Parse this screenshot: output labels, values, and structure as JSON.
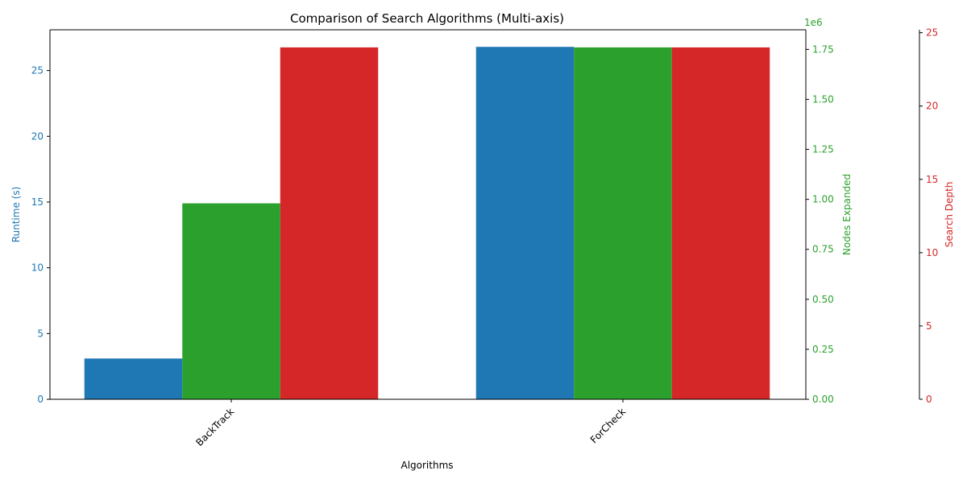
{
  "chart_data": {
    "type": "bar",
    "title": "Comparison of Search Algorithms (Multi-axis)",
    "xlabel": "Algorithms",
    "categories": [
      "BackTrack",
      "ForCheck"
    ],
    "series": [
      {
        "name": "Runtime",
        "axis_label": "Runtime (s)",
        "color": "#1f77b4",
        "values": [
          3.1,
          26.8
        ],
        "ylim": [
          0,
          28.1
        ],
        "ticks": [
          0,
          5,
          10,
          15,
          20,
          25
        ],
        "tick_labels": [
          "0",
          "5",
          "10",
          "15",
          "20",
          "25"
        ]
      },
      {
        "name": "Nodes Expanded",
        "axis_label": "Nodes Expanded",
        "color": "#2ca02c",
        "values": [
          980000,
          1760000
        ],
        "ylim": [
          0,
          1848000
        ],
        "ticks": [
          0,
          250000,
          500000,
          750000,
          1000000,
          1250000,
          1500000,
          1750000
        ],
        "tick_labels": [
          "0.00",
          "0.25",
          "0.50",
          "0.75",
          "1.00",
          "1.25",
          "1.50",
          "1.75"
        ],
        "offset_text": "1e6"
      },
      {
        "name": "Search Depth",
        "axis_label": "Search Depth",
        "color": "#d62728",
        "values": [
          24,
          24
        ],
        "ylim": [
          0,
          25.2
        ],
        "ticks": [
          0,
          5,
          10,
          15,
          20,
          25
        ],
        "tick_labels": [
          "0",
          "5",
          "10",
          "15",
          "20",
          "25"
        ]
      }
    ],
    "grid": false,
    "legend": "none"
  }
}
